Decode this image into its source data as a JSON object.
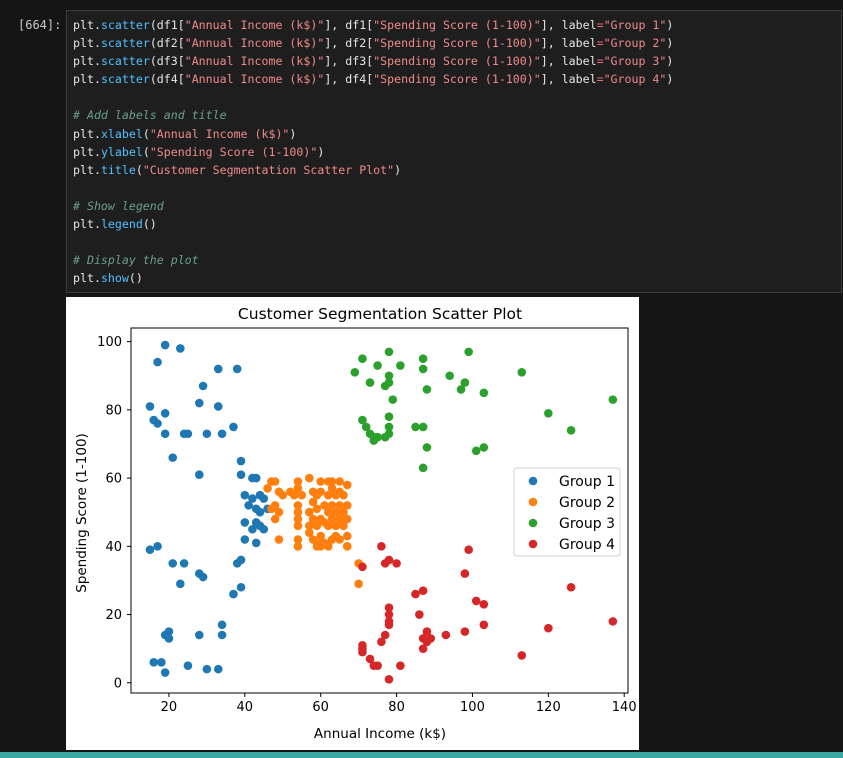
{
  "prompt": "[664]:",
  "code_lines": [
    [
      {
        "t": "plt",
        "c": "t-name"
      },
      {
        "t": ".",
        "c": "t-punc"
      },
      {
        "t": "scatter",
        "c": "t-fn"
      },
      {
        "t": "(df1[",
        "c": "t-punc"
      },
      {
        "t": "\"Annual Income (k$)\"",
        "c": "t-str"
      },
      {
        "t": "], df1[",
        "c": "t-punc"
      },
      {
        "t": "\"Spending Score (1-100)\"",
        "c": "t-str"
      },
      {
        "t": "], label",
        "c": "t-punc"
      },
      {
        "t": "=",
        "c": "t-eq"
      },
      {
        "t": "\"Group 1\"",
        "c": "t-str"
      },
      {
        "t": ")",
        "c": "t-punc"
      }
    ],
    [
      {
        "t": "plt",
        "c": "t-name"
      },
      {
        "t": ".",
        "c": "t-punc"
      },
      {
        "t": "scatter",
        "c": "t-fn"
      },
      {
        "t": "(df2[",
        "c": "t-punc"
      },
      {
        "t": "\"Annual Income (k$)\"",
        "c": "t-str"
      },
      {
        "t": "], df2[",
        "c": "t-punc"
      },
      {
        "t": "\"Spending Score (1-100)\"",
        "c": "t-str"
      },
      {
        "t": "], label",
        "c": "t-punc"
      },
      {
        "t": "=",
        "c": "t-eq"
      },
      {
        "t": "\"Group 2\"",
        "c": "t-str"
      },
      {
        "t": ")",
        "c": "t-punc"
      }
    ],
    [
      {
        "t": "plt",
        "c": "t-name"
      },
      {
        "t": ".",
        "c": "t-punc"
      },
      {
        "t": "scatter",
        "c": "t-fn"
      },
      {
        "t": "(df3[",
        "c": "t-punc"
      },
      {
        "t": "\"Annual Income (k$)\"",
        "c": "t-str"
      },
      {
        "t": "], df3[",
        "c": "t-punc"
      },
      {
        "t": "\"Spending Score (1-100)\"",
        "c": "t-str"
      },
      {
        "t": "], label",
        "c": "t-punc"
      },
      {
        "t": "=",
        "c": "t-eq"
      },
      {
        "t": "\"Group 3\"",
        "c": "t-str"
      },
      {
        "t": ")",
        "c": "t-punc"
      }
    ],
    [
      {
        "t": "plt",
        "c": "t-name"
      },
      {
        "t": ".",
        "c": "t-punc"
      },
      {
        "t": "scatter",
        "c": "t-fn"
      },
      {
        "t": "(df4[",
        "c": "t-punc"
      },
      {
        "t": "\"Annual Income (k$)\"",
        "c": "t-str"
      },
      {
        "t": "], df4[",
        "c": "t-punc"
      },
      {
        "t": "\"Spending Score (1-100)\"",
        "c": "t-str"
      },
      {
        "t": "], label",
        "c": "t-punc"
      },
      {
        "t": "=",
        "c": "t-eq"
      },
      {
        "t": "\"Group 4\"",
        "c": "t-str"
      },
      {
        "t": ")",
        "c": "t-punc"
      }
    ],
    [],
    [
      {
        "t": "# Add labels and title",
        "c": "t-comment"
      }
    ],
    [
      {
        "t": "plt",
        "c": "t-name"
      },
      {
        "t": ".",
        "c": "t-punc"
      },
      {
        "t": "xlabel",
        "c": "t-fn"
      },
      {
        "t": "(",
        "c": "t-punc"
      },
      {
        "t": "\"Annual Income (k$)\"",
        "c": "t-str"
      },
      {
        "t": ")",
        "c": "t-punc"
      }
    ],
    [
      {
        "t": "plt",
        "c": "t-name"
      },
      {
        "t": ".",
        "c": "t-punc"
      },
      {
        "t": "ylabel",
        "c": "t-fn"
      },
      {
        "t": "(",
        "c": "t-punc"
      },
      {
        "t": "\"Spending Score (1-100)\"",
        "c": "t-str"
      },
      {
        "t": ")",
        "c": "t-punc"
      }
    ],
    [
      {
        "t": "plt",
        "c": "t-name"
      },
      {
        "t": ".",
        "c": "t-punc"
      },
      {
        "t": "title",
        "c": "t-fn"
      },
      {
        "t": "(",
        "c": "t-punc"
      },
      {
        "t": "\"Customer Segmentation Scatter Plot\"",
        "c": "t-str"
      },
      {
        "t": ")",
        "c": "t-punc"
      }
    ],
    [],
    [
      {
        "t": "# Show legend",
        "c": "t-comment"
      }
    ],
    [
      {
        "t": "plt",
        "c": "t-name"
      },
      {
        "t": ".",
        "c": "t-punc"
      },
      {
        "t": "legend",
        "c": "t-fn"
      },
      {
        "t": "()",
        "c": "t-punc"
      }
    ],
    [],
    [
      {
        "t": "# Display the plot",
        "c": "t-comment"
      }
    ],
    [
      {
        "t": "plt",
        "c": "t-name"
      },
      {
        "t": ".",
        "c": "t-punc"
      },
      {
        "t": "show",
        "c": "t-fn"
      },
      {
        "t": "()",
        "c": "t-punc"
      }
    ]
  ],
  "chart_data": {
    "type": "scatter",
    "title": "Customer Segmentation Scatter Plot",
    "xlabel": "Annual Income (k$)",
    "ylabel": "Spending Score (1-100)",
    "xlim": [
      10,
      141
    ],
    "ylim": [
      -3,
      104
    ],
    "xticks": [
      20,
      40,
      60,
      80,
      100,
      120,
      140
    ],
    "yticks": [
      0,
      20,
      40,
      60,
      80,
      100
    ],
    "legend_position": "center-right",
    "grid": false,
    "series": [
      {
        "name": "Group 1",
        "color": "#1f77b4",
        "points": [
          [
            19,
            99
          ],
          [
            23,
            98
          ],
          [
            17,
            94
          ],
          [
            33,
            92
          ],
          [
            38,
            92
          ],
          [
            29,
            87
          ],
          [
            28,
            82
          ],
          [
            15,
            81
          ],
          [
            19,
            79
          ],
          [
            33,
            81
          ],
          [
            16,
            77
          ],
          [
            17,
            76
          ],
          [
            37,
            75
          ],
          [
            19,
            73
          ],
          [
            24,
            73
          ],
          [
            25,
            73
          ],
          [
            30,
            73
          ],
          [
            34,
            73
          ],
          [
            21,
            66
          ],
          [
            39,
            65
          ],
          [
            28,
            61
          ],
          [
            39,
            61
          ],
          [
            42,
            60
          ],
          [
            43,
            60
          ],
          [
            44,
            55
          ],
          [
            40,
            55
          ],
          [
            42,
            54
          ],
          [
            45,
            54
          ],
          [
            43,
            51
          ],
          [
            41,
            52
          ],
          [
            44,
            50
          ],
          [
            46,
            51
          ],
          [
            43,
            47
          ],
          [
            40,
            47
          ],
          [
            44,
            46
          ],
          [
            45,
            45
          ],
          [
            42,
            45
          ],
          [
            40,
            42
          ],
          [
            43,
            41
          ],
          [
            15,
            39
          ],
          [
            17,
            40
          ],
          [
            21,
            35
          ],
          [
            24,
            35
          ],
          [
            38,
            35
          ],
          [
            39,
            36
          ],
          [
            28,
            32
          ],
          [
            29,
            31
          ],
          [
            23,
            29
          ],
          [
            39,
            28
          ],
          [
            37,
            26
          ],
          [
            34,
            17
          ],
          [
            20,
            15
          ],
          [
            19,
            14
          ],
          [
            20,
            13
          ],
          [
            28,
            14
          ],
          [
            34,
            14
          ],
          [
            16,
            6
          ],
          [
            18,
            6
          ],
          [
            25,
            5
          ],
          [
            30,
            4
          ],
          [
            33,
            4
          ],
          [
            19,
            3
          ]
        ]
      },
      {
        "name": "Group 2",
        "color": "#ff7f0e",
        "points": [
          [
            47,
            59
          ],
          [
            48,
            59
          ],
          [
            54,
            59
          ],
          [
            57,
            60
          ],
          [
            60,
            59
          ],
          [
            62,
            59
          ],
          [
            63,
            59
          ],
          [
            65,
            59
          ],
          [
            67,
            58
          ],
          [
            46,
            57
          ],
          [
            49,
            56
          ],
          [
            52,
            56
          ],
          [
            54,
            57
          ],
          [
            58,
            56
          ],
          [
            60,
            56
          ],
          [
            63,
            57
          ],
          [
            65,
            56
          ],
          [
            50,
            55
          ],
          [
            53,
            55
          ],
          [
            55,
            55
          ],
          [
            59,
            55
          ],
          [
            62,
            55
          ],
          [
            64,
            55
          ],
          [
            66,
            55
          ],
          [
            48,
            52
          ],
          [
            54,
            52
          ],
          [
            58,
            53
          ],
          [
            61,
            52
          ],
          [
            63,
            52
          ],
          [
            65,
            52
          ],
          [
            67,
            52
          ],
          [
            47,
            51
          ],
          [
            49,
            50
          ],
          [
            54,
            50
          ],
          [
            57,
            50
          ],
          [
            59,
            51
          ],
          [
            62,
            50
          ],
          [
            64,
            50
          ],
          [
            66,
            50
          ],
          [
            48,
            48
          ],
          [
            54,
            48
          ],
          [
            58,
            48
          ],
          [
            60,
            48
          ],
          [
            61,
            47
          ],
          [
            63,
            48
          ],
          [
            65,
            48
          ],
          [
            67,
            48
          ],
          [
            54,
            46
          ],
          [
            57,
            46
          ],
          [
            59,
            46
          ],
          [
            62,
            46
          ],
          [
            64,
            46
          ],
          [
            66,
            46
          ],
          [
            57,
            44
          ],
          [
            60,
            43
          ],
          [
            64,
            43
          ],
          [
            67,
            43
          ],
          [
            49,
            42
          ],
          [
            54,
            42
          ],
          [
            58,
            42
          ],
          [
            60,
            41
          ],
          [
            61,
            41
          ],
          [
            63,
            42
          ],
          [
            65,
            42
          ],
          [
            54,
            40
          ],
          [
            59,
            40
          ],
          [
            60,
            40
          ],
          [
            62,
            40
          ],
          [
            67,
            40
          ],
          [
            70,
            35
          ],
          [
            70,
            29
          ]
        ]
      },
      {
        "name": "Group 3",
        "color": "#2ca02c",
        "points": [
          [
            71,
            95
          ],
          [
            78,
            97
          ],
          [
            87,
            95
          ],
          [
            99,
            97
          ],
          [
            75,
            93
          ],
          [
            81,
            93
          ],
          [
            87,
            92
          ],
          [
            69,
            91
          ],
          [
            73,
            88
          ],
          [
            78,
            90
          ],
          [
            78,
            88
          ],
          [
            77,
            87
          ],
          [
            88,
            86
          ],
          [
            94,
            90
          ],
          [
            97,
            86
          ],
          [
            98,
            88
          ],
          [
            103,
            85
          ],
          [
            113,
            91
          ],
          [
            79,
            83
          ],
          [
            137,
            83
          ],
          [
            120,
            79
          ],
          [
            71,
            77
          ],
          [
            78,
            78
          ],
          [
            72,
            75
          ],
          [
            78,
            75
          ],
          [
            85,
            75
          ],
          [
            87,
            75
          ],
          [
            126,
            74
          ],
          [
            73,
            73
          ],
          [
            74,
            72
          ],
          [
            75,
            72
          ],
          [
            78,
            73
          ],
          [
            74,
            71
          ],
          [
            77,
            72
          ],
          [
            101,
            68
          ],
          [
            103,
            69
          ],
          [
            88,
            69
          ],
          [
            87,
            63
          ]
        ]
      },
      {
        "name": "Group 4",
        "color": "#d62728",
        "points": [
          [
            76,
            40
          ],
          [
            99,
            39
          ],
          [
            78,
            36
          ],
          [
            77,
            35
          ],
          [
            80,
            35
          ],
          [
            71,
            34
          ],
          [
            98,
            32
          ],
          [
            126,
            28
          ],
          [
            87,
            27
          ],
          [
            85,
            26
          ],
          [
            101,
            24
          ],
          [
            103,
            23
          ],
          [
            78,
            22
          ],
          [
            78,
            20
          ],
          [
            86,
            20
          ],
          [
            78,
            18
          ],
          [
            137,
            18
          ],
          [
            78,
            17
          ],
          [
            103,
            17
          ],
          [
            120,
            16
          ],
          [
            88,
            15
          ],
          [
            98,
            15
          ],
          [
            77,
            14
          ],
          [
            93,
            14
          ],
          [
            87,
            13
          ],
          [
            89,
            13
          ],
          [
            88,
            12
          ],
          [
            76,
            12
          ],
          [
            71,
            11
          ],
          [
            71,
            10
          ],
          [
            87,
            10
          ],
          [
            71,
            9
          ],
          [
            113,
            8
          ],
          [
            73,
            7
          ],
          [
            74,
            5
          ],
          [
            75,
            5
          ],
          [
            81,
            5
          ],
          [
            78,
            1
          ]
        ]
      }
    ]
  }
}
